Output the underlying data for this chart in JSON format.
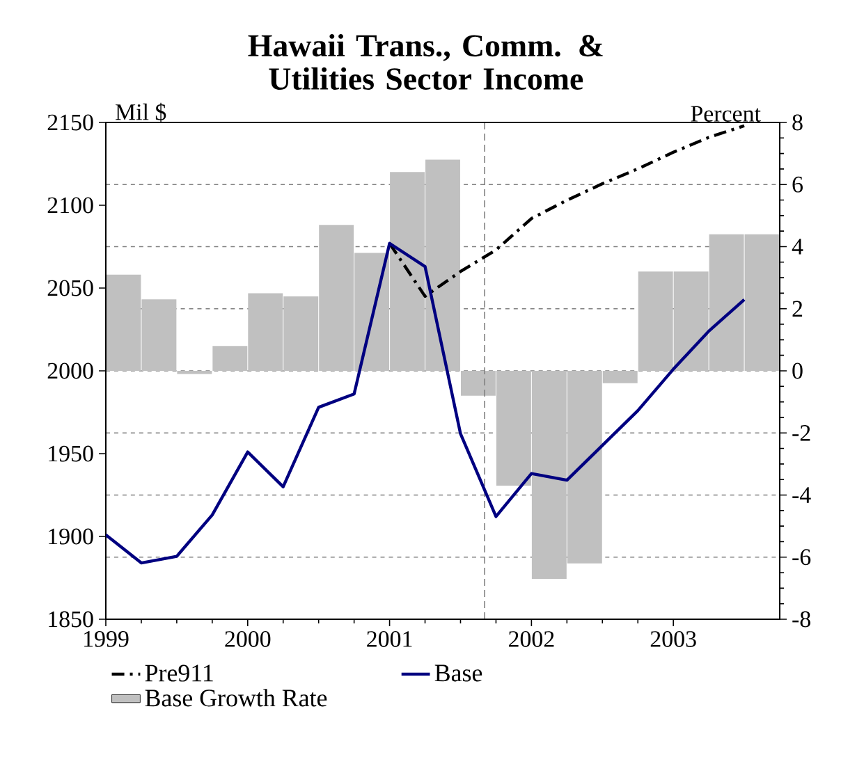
{
  "chart_data": {
    "type": "line",
    "title": "Hawaii Trans., Comm. & Utilities Sector Income",
    "ylabel": "Mil $",
    "y2label": "Percent",
    "x": [
      1999.0,
      1999.25,
      1999.5,
      1999.75,
      2000.0,
      2000.25,
      2000.5,
      2000.75,
      2001.0,
      2001.25,
      2001.5,
      2001.75,
      2002.0,
      2002.25,
      2002.5,
      2002.75,
      2003.0,
      2003.25,
      2003.5
    ],
    "series": [
      {
        "name": "Pre911",
        "color": "#000000",
        "line_style": "dashed",
        "values": [
          null,
          null,
          null,
          null,
          null,
          null,
          null,
          null,
          2077,
          2045,
          2060,
          2073,
          2092,
          2103,
          2113,
          2122,
          2132,
          2141,
          2148
        ]
      },
      {
        "name": "Base",
        "color": "#000080",
        "line_style": "solid",
        "values": [
          1901,
          1884,
          1888,
          1913,
          1951,
          1930,
          1978,
          1986,
          2077,
          2063,
          1962,
          1912,
          1938,
          1934,
          1955,
          1976,
          2001,
          2024,
          2043
        ]
      },
      {
        "name": "Base Growth Rate",
        "type": "bar",
        "axis": "y2",
        "color": "#c0c0c0",
        "x": [
          1999.125,
          1999.375,
          1999.625,
          1999.875,
          2000.125,
          2000.375,
          2000.625,
          2000.875,
          2001.125,
          2001.375,
          2001.625,
          2001.875,
          2002.125,
          2002.375,
          2002.625,
          2002.875,
          2003.125,
          2003.375,
          2003.625
        ],
        "values": [
          3.1,
          2.3,
          -0.1,
          0.8,
          2.5,
          2.4,
          4.7,
          3.8,
          6.4,
          6.8,
          -0.8,
          -3.7,
          -6.7,
          -6.2,
          -0.4,
          3.2,
          3.2,
          4.4,
          4.4
        ]
      }
    ],
    "xlim": [
      1999,
      2003.75
    ],
    "xticks": [
      1999,
      2000,
      2001,
      2002,
      2003
    ],
    "ylim": [
      1850,
      2150
    ],
    "yticks": [
      1850,
      1900,
      1950,
      2000,
      2050,
      2100,
      2150
    ],
    "y2lim": [
      -8,
      8
    ],
    "y2ticks": [
      -8,
      -6,
      -4,
      -2,
      0,
      2,
      4,
      6,
      8
    ],
    "ref_lines": [
      {
        "axis": "x",
        "value": 2001.67,
        "color": "#808080",
        "line_style": "dashed"
      }
    ],
    "grid": "y",
    "legend": "bottom"
  }
}
